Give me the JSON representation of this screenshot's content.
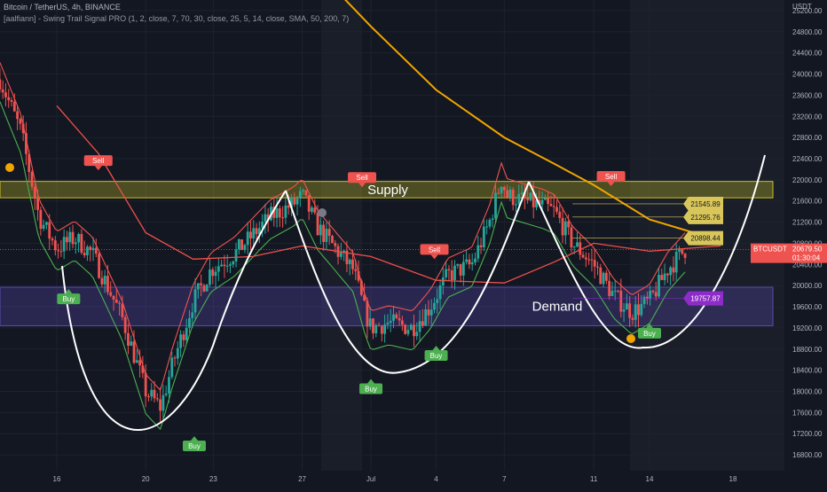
{
  "header": {
    "symbol_line": "Bitcoin / TetherUS, 4h, BINANCE",
    "indicator_line": "[aalfiann] - Swing Trail Signal PRO (1, 2, close, 7, 70, 30, close, 25, 5, 14, close, SMA, 50, 200, 7)"
  },
  "chart_data": {
    "type": "candlestick",
    "title": "Bitcoin / TetherUS, 4h, BINANCE",
    "y_axis_label": "USDT",
    "ylim": [
      16500,
      25400
    ],
    "y_ticks": [
      16800,
      17200,
      17600,
      18000,
      18400,
      18800,
      19200,
      19600,
      20000,
      20400,
      20800,
      21200,
      21600,
      22000,
      22400,
      22800,
      23200,
      23600,
      24000,
      24400,
      24800,
      25200
    ],
    "x_ticks": [
      {
        "label": "16",
        "pos": 0.0
      },
      {
        "label": "20",
        "pos": 0.15
      },
      {
        "label": "23",
        "pos": 0.264
      },
      {
        "label": "27",
        "pos": 0.414
      },
      {
        "label": "Jul",
        "pos": 0.53
      },
      {
        "label": "4",
        "pos": 0.64
      },
      {
        "label": "7",
        "pos": 0.755
      },
      {
        "label": "11",
        "pos": 0.906
      },
      {
        "label": "14",
        "pos": 1.0
      }
    ],
    "last_price": {
      "label": "BTCUSDT",
      "value": "20679.50",
      "countdown": "01:30:04"
    },
    "zones": [
      {
        "name": "Supply",
        "top": 21970,
        "bottom": 21660,
        "color": "#c9c028"
      },
      {
        "name": "Demand",
        "top": 19970,
        "bottom": 19240,
        "color": "#5a4bb0"
      }
    ],
    "price_tags": [
      {
        "value": "21545.89",
        "price": 21546,
        "color": "#d9c65a"
      },
      {
        "value": "21295.76",
        "price": 21296,
        "color": "#d9c65a"
      },
      {
        "value": "20898.44",
        "price": 20898,
        "color": "#d9c65a"
      },
      {
        "value": "19757.87",
        "price": 19758,
        "color": "#8e2cc7"
      }
    ],
    "signals": [
      {
        "label": "Buy",
        "type": "buy",
        "pos": 0.02,
        "price": 19850
      },
      {
        "label": "Sell",
        "type": "sell",
        "pos": 0.07,
        "price": 22180
      },
      {
        "label": "Buy",
        "type": "buy",
        "pos": 0.232,
        "price": 17070
      },
      {
        "label": "Sell",
        "type": "sell",
        "pos": 0.515,
        "price": 21860
      },
      {
        "label": "Buy",
        "type": "buy",
        "pos": 0.53,
        "price": 18150
      },
      {
        "label": "Sell",
        "type": "sell",
        "pos": 0.637,
        "price": 20500
      },
      {
        "label": "Buy",
        "type": "buy",
        "pos": 0.64,
        "price": 18780
      },
      {
        "label": "Sell",
        "type": "sell",
        "pos": 0.935,
        "price": 21880
      },
      {
        "label": "Buy",
        "type": "buy",
        "pos": 1.0,
        "price": 19200
      }
    ],
    "series": [
      {
        "name": "SMA 200",
        "color": "#f0a500",
        "points": [
          [
            0.47,
            25600
          ],
          [
            0.53,
            24900
          ],
          [
            0.64,
            23700
          ],
          [
            0.755,
            22800
          ],
          [
            0.84,
            22300
          ],
          [
            0.906,
            21900
          ],
          [
            1.0,
            21250
          ],
          [
            1.12,
            20850
          ]
        ]
      },
      {
        "name": "SMA 50",
        "color": "#f0504a",
        "points": [
          [
            0.0,
            23400
          ],
          [
            0.07,
            22500
          ],
          [
            0.15,
            21000
          ],
          [
            0.23,
            20500
          ],
          [
            0.33,
            20550
          ],
          [
            0.414,
            20750
          ],
          [
            0.53,
            20550
          ],
          [
            0.64,
            20100
          ],
          [
            0.755,
            20050
          ],
          [
            0.84,
            20450
          ],
          [
            0.906,
            20800
          ],
          [
            1.0,
            20650
          ],
          [
            1.12,
            20750
          ]
        ]
      }
    ]
  }
}
